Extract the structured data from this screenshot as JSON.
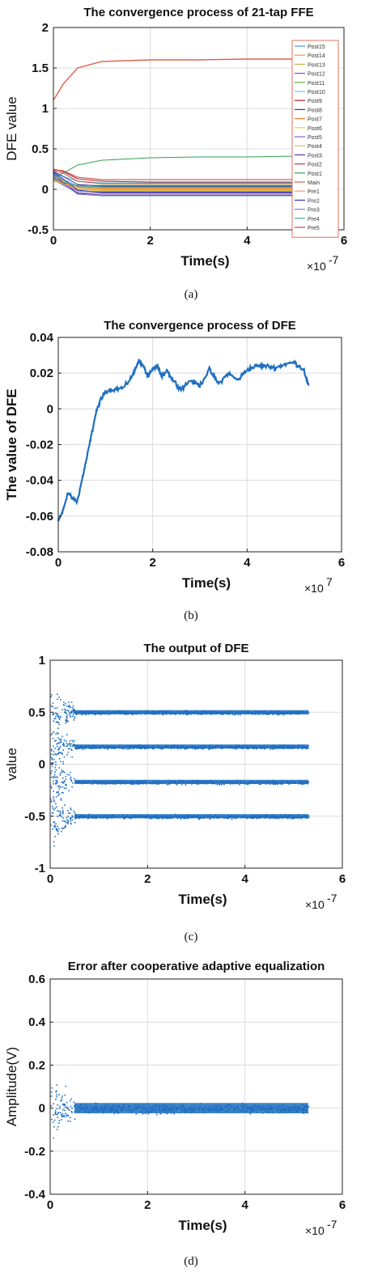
{
  "chart_data": [
    {
      "type": "line",
      "title": "The convergence process of 21-tap FFE",
      "xlabel": "Time(s)",
      "ylabel": "DFE value",
      "x_multiplier": "×10",
      "x_exponent": "-7",
      "xlim": [
        0,
        6
      ],
      "ylim": [
        -0.5,
        2
      ],
      "xticks": [
        "0",
        "2",
        "4",
        "6"
      ],
      "yticks": [
        "-0.5",
        "0",
        "0.5",
        "1",
        "1.5",
        "2"
      ],
      "grid": true,
      "legend_position": "right",
      "x": [
        0,
        0.2,
        0.5,
        1,
        2,
        3,
        4,
        5,
        5.3
      ],
      "series": [
        {
          "name": "Post15",
          "color": "#4a90d9",
          "values": [
            0.2,
            0.12,
            0.04,
            0.03,
            0.03,
            0.03,
            0.03,
            0.03,
            0.03
          ]
        },
        {
          "name": "Post14",
          "color": "#e8a030",
          "values": [
            0.15,
            0.1,
            0.02,
            0.01,
            0.01,
            0.01,
            0.01,
            0.01,
            0.01
          ]
        },
        {
          "name": "Post13",
          "color": "#c8b040",
          "values": [
            0.18,
            0.1,
            0.0,
            -0.01,
            -0.01,
            -0.01,
            -0.01,
            -0.01,
            -0.01
          ]
        },
        {
          "name": "Post12",
          "color": "#8a50b0",
          "values": [
            0.16,
            0.08,
            -0.02,
            -0.03,
            -0.03,
            -0.03,
            -0.03,
            -0.03,
            -0.03
          ]
        },
        {
          "name": "Post11",
          "color": "#60b040",
          "values": [
            0.14,
            0.06,
            0.05,
            0.05,
            0.05,
            0.05,
            0.05,
            0.05,
            0.05
          ]
        },
        {
          "name": "Post10",
          "color": "#60c8e8",
          "values": [
            0.2,
            0.16,
            0.1,
            0.08,
            0.08,
            0.08,
            0.08,
            0.08,
            0.08
          ]
        },
        {
          "name": "Post9",
          "color": "#b02020",
          "values": [
            0.25,
            0.22,
            0.13,
            0.1,
            0.09,
            0.09,
            0.09,
            0.09,
            0.09
          ]
        },
        {
          "name": "Post8",
          "color": "#1f3fa0",
          "values": [
            0.22,
            0.16,
            0.06,
            0.04,
            0.04,
            0.04,
            0.04,
            0.04,
            0.04
          ]
        },
        {
          "name": "Post7",
          "color": "#f08030",
          "values": [
            0.12,
            0.08,
            0.03,
            0.02,
            0.02,
            0.02,
            0.02,
            0.02,
            0.02
          ]
        },
        {
          "name": "Post6",
          "color": "#e0d040",
          "values": [
            0.1,
            0.06,
            0.0,
            -0.02,
            -0.02,
            -0.02,
            -0.02,
            -0.02,
            -0.02
          ]
        },
        {
          "name": "Post5",
          "color": "#9060c0",
          "values": [
            0.13,
            0.05,
            -0.04,
            -0.05,
            -0.05,
            -0.05,
            -0.05,
            -0.05,
            -0.05
          ]
        },
        {
          "name": "Post4",
          "color": "#d8c060",
          "values": [
            0.17,
            0.11,
            0.02,
            0.0,
            0.0,
            0.0,
            0.0,
            0.0,
            0.0
          ]
        },
        {
          "name": "Post3",
          "color": "#6a3090",
          "values": [
            0.19,
            0.09,
            -0.05,
            -0.07,
            -0.07,
            -0.07,
            -0.07,
            -0.07,
            -0.07
          ]
        },
        {
          "name": "Post2",
          "color": "#c04040",
          "values": [
            0.24,
            0.23,
            0.15,
            0.12,
            0.12,
            0.12,
            0.12,
            0.12,
            0.12
          ]
        },
        {
          "name": "Post1",
          "color": "#30a050",
          "values": [
            0.15,
            0.2,
            0.3,
            0.36,
            0.39,
            0.4,
            0.4,
            0.41,
            0.41
          ]
        },
        {
          "name": "Main",
          "color": "#e06050",
          "values": [
            1.1,
            1.3,
            1.5,
            1.58,
            1.6,
            1.6,
            1.61,
            1.61,
            1.61
          ]
        },
        {
          "name": "Pre1",
          "color": "#f0a070",
          "values": [
            0.11,
            0.07,
            0.01,
            0.0,
            0.0,
            0.0,
            0.0,
            0.0,
            0.0
          ]
        },
        {
          "name": "Pre2",
          "color": "#2040b0",
          "values": [
            0.21,
            0.13,
            -0.01,
            -0.04,
            -0.04,
            -0.04,
            -0.04,
            -0.04,
            -0.04
          ]
        },
        {
          "name": "Pre3",
          "color": "#7080d0",
          "values": [
            0.16,
            0.07,
            -0.06,
            -0.08,
            -0.08,
            -0.08,
            -0.08,
            -0.08,
            -0.08
          ]
        },
        {
          "name": "Pre4",
          "color": "#50a0a0",
          "values": [
            0.14,
            0.09,
            0.04,
            0.03,
            0.03,
            0.03,
            0.03,
            0.03,
            0.03
          ]
        },
        {
          "name": "Pre5",
          "color": "#d04050",
          "values": [
            0.23,
            0.2,
            0.1,
            0.07,
            0.07,
            0.07,
            0.07,
            0.07,
            0.07
          ]
        }
      ],
      "caption": "(a)"
    },
    {
      "type": "line",
      "title": "The convergence process of DFE",
      "xlabel": "Time(s)",
      "ylabel": "The value of DFE",
      "x_multiplier": "×10",
      "x_exponent": "7",
      "xlim": [
        0,
        6
      ],
      "ylim": [
        -0.08,
        0.04
      ],
      "xticks": [
        "0",
        "2",
        "4",
        "6"
      ],
      "yticks": [
        "-0.08",
        "-0.06",
        "-0.04",
        "-0.02",
        "0",
        "0.02",
        "0.04"
      ],
      "grid": true,
      "color": "#1f6fc0",
      "x": [
        0,
        0.1,
        0.2,
        0.3,
        0.4,
        0.5,
        0.6,
        0.7,
        0.8,
        0.9,
        1.0,
        1.2,
        1.4,
        1.6,
        1.7,
        1.8,
        1.9,
        2.0,
        2.1,
        2.2,
        2.3,
        2.4,
        2.6,
        2.8,
        3.0,
        3.2,
        3.4,
        3.6,
        3.8,
        4.0,
        4.2,
        4.4,
        4.6,
        4.8,
        5.0,
        5.2,
        5.3
      ],
      "values": [
        -0.063,
        -0.057,
        -0.047,
        -0.05,
        -0.052,
        -0.04,
        -0.028,
        -0.015,
        -0.002,
        0.005,
        0.01,
        0.011,
        0.012,
        0.02,
        0.027,
        0.024,
        0.018,
        0.022,
        0.024,
        0.018,
        0.022,
        0.017,
        0.011,
        0.016,
        0.013,
        0.022,
        0.014,
        0.02,
        0.016,
        0.022,
        0.024,
        0.024,
        0.023,
        0.025,
        0.026,
        0.022,
        0.013
      ],
      "caption": "(b)"
    },
    {
      "type": "scatter",
      "title": "The output of DFE",
      "xlabel": "Time(s)",
      "ylabel": "value",
      "x_multiplier": "×10",
      "x_exponent": "-7",
      "xlim": [
        0,
        6
      ],
      "ylim": [
        -1,
        1
      ],
      "xticks": [
        "0",
        "2",
        "4",
        "6"
      ],
      "yticks": [
        "-1",
        "-0.5",
        "0",
        "0.5",
        "1"
      ],
      "grid": true,
      "color": "#1f6fc0",
      "x_range": [
        0,
        5.3
      ],
      "levels": [
        0.5,
        0.17,
        -0.17,
        -0.5
      ],
      "initial_spread": 0.35,
      "settled_spread": 0.025,
      "settle_time": 0.5,
      "caption": "(c)"
    },
    {
      "type": "scatter",
      "title": "Error after cooperative adaptive equalization",
      "xlabel": "Time(s)",
      "ylabel": "Amplitude(V)",
      "x_multiplier": "×10",
      "x_exponent": "-7",
      "xlim": [
        0,
        6
      ],
      "ylim": [
        -0.4,
        0.6
      ],
      "xticks": [
        "0",
        "2",
        "4",
        "6"
      ],
      "yticks": [
        "-0.4",
        "-0.2",
        "0",
        "0.2",
        "0.4",
        "0.6"
      ],
      "grid": true,
      "color": "#1f6fc0",
      "x_range": [
        0,
        5.3
      ],
      "levels": [
        0
      ],
      "initial_spread": 0.17,
      "settled_spread": 0.03,
      "settle_time": 0.5,
      "caption": "(d)"
    }
  ]
}
